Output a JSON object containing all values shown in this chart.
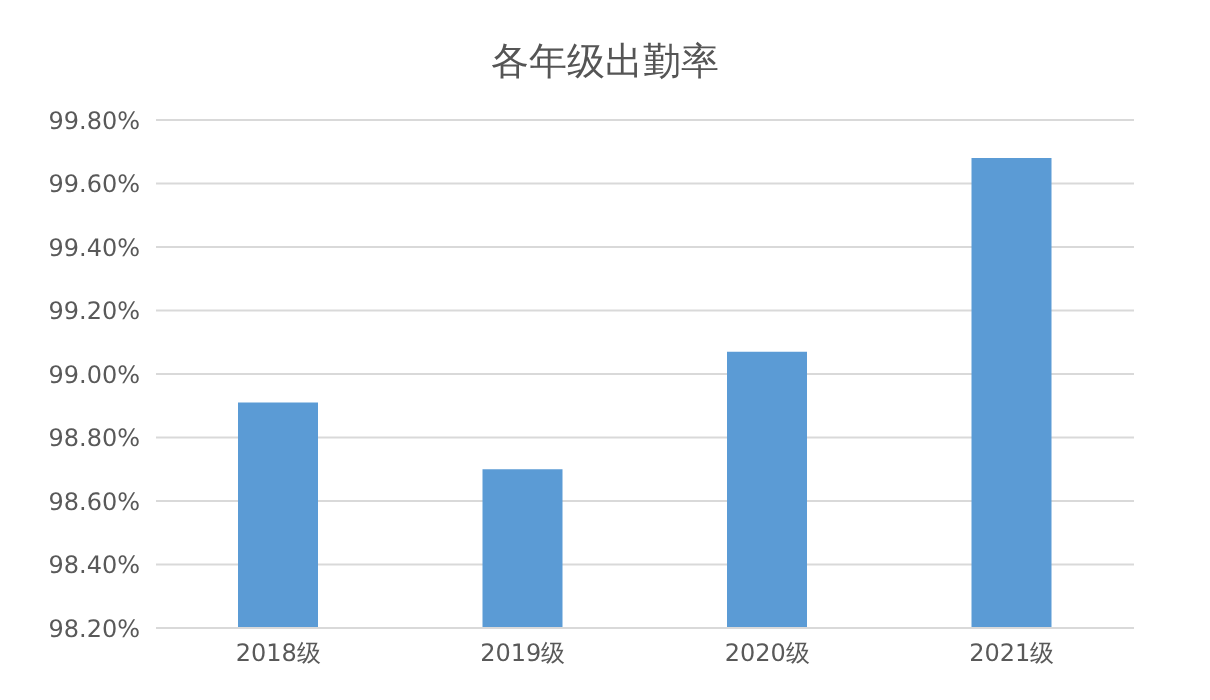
{
  "chart_data": {
    "type": "bar",
    "title": "各年级出勤率",
    "categories": [
      "2018级",
      "2019级",
      "2020级",
      "2021级"
    ],
    "values": [
      98.91,
      98.7,
      99.07,
      99.68
    ],
    "color": "#5b9bd5",
    "ylim": [
      98.2,
      99.8
    ],
    "yticks": [
      {
        "value": 98.2,
        "label": "98.20%"
      },
      {
        "value": 98.4,
        "label": "98.40%"
      },
      {
        "value": 98.6,
        "label": "98.60%"
      },
      {
        "value": 98.8,
        "label": "98.80%"
      },
      {
        "value": 99.0,
        "label": "99.00%"
      },
      {
        "value": 99.2,
        "label": "99.20%"
      },
      {
        "value": 99.4,
        "label": "99.40%"
      },
      {
        "value": 99.6,
        "label": "99.60%"
      },
      {
        "value": 99.8,
        "label": "99.80%"
      }
    ],
    "grid": "y"
  }
}
